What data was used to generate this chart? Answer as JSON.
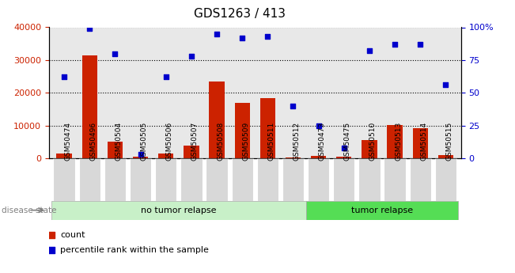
{
  "title": "GDS1263 / 413",
  "samples": [
    "GSM50474",
    "GSM50496",
    "GSM50504",
    "GSM50505",
    "GSM50506",
    "GSM50507",
    "GSM50508",
    "GSM50509",
    "GSM50511",
    "GSM50512",
    "GSM50473",
    "GSM50475",
    "GSM50510",
    "GSM50513",
    "GSM50514",
    "GSM50515"
  ],
  "count_values": [
    1500,
    31500,
    5000,
    500,
    1500,
    4000,
    23500,
    17000,
    18500,
    200,
    700,
    500,
    5500,
    10200,
    9200,
    900
  ],
  "percentile_values": [
    62,
    99,
    80,
    3,
    62,
    78,
    95,
    92,
    93,
    40,
    25,
    8,
    82,
    87,
    87,
    56
  ],
  "group_labels": [
    "no tumor relapse",
    "tumor relapse"
  ],
  "group_split": 10,
  "group_colors": [
    "#c8f0c8",
    "#55dd55"
  ],
  "bar_color": "#cc2200",
  "scatter_color": "#0000cc",
  "ylim_left": [
    0,
    40000
  ],
  "ylim_right": [
    0,
    100
  ],
  "yticks_left": [
    0,
    10000,
    20000,
    30000,
    40000
  ],
  "yticks_right": [
    0,
    25,
    50,
    75,
    100
  ],
  "ytick_labels_right": [
    "0",
    "25",
    "50",
    "75",
    "100%"
  ],
  "grid_color": "black",
  "bg_color": "#e8e8e8",
  "xticklabel_bg": "#d8d8d8",
  "legend_count_label": "count",
  "legend_pct_label": "percentile rank within the sample",
  "disease_state_label": "disease state",
  "left_color": "#cc2200",
  "right_color": "#0000cc",
  "title_fontsize": 11,
  "tick_fontsize": 8,
  "label_fontsize": 8
}
